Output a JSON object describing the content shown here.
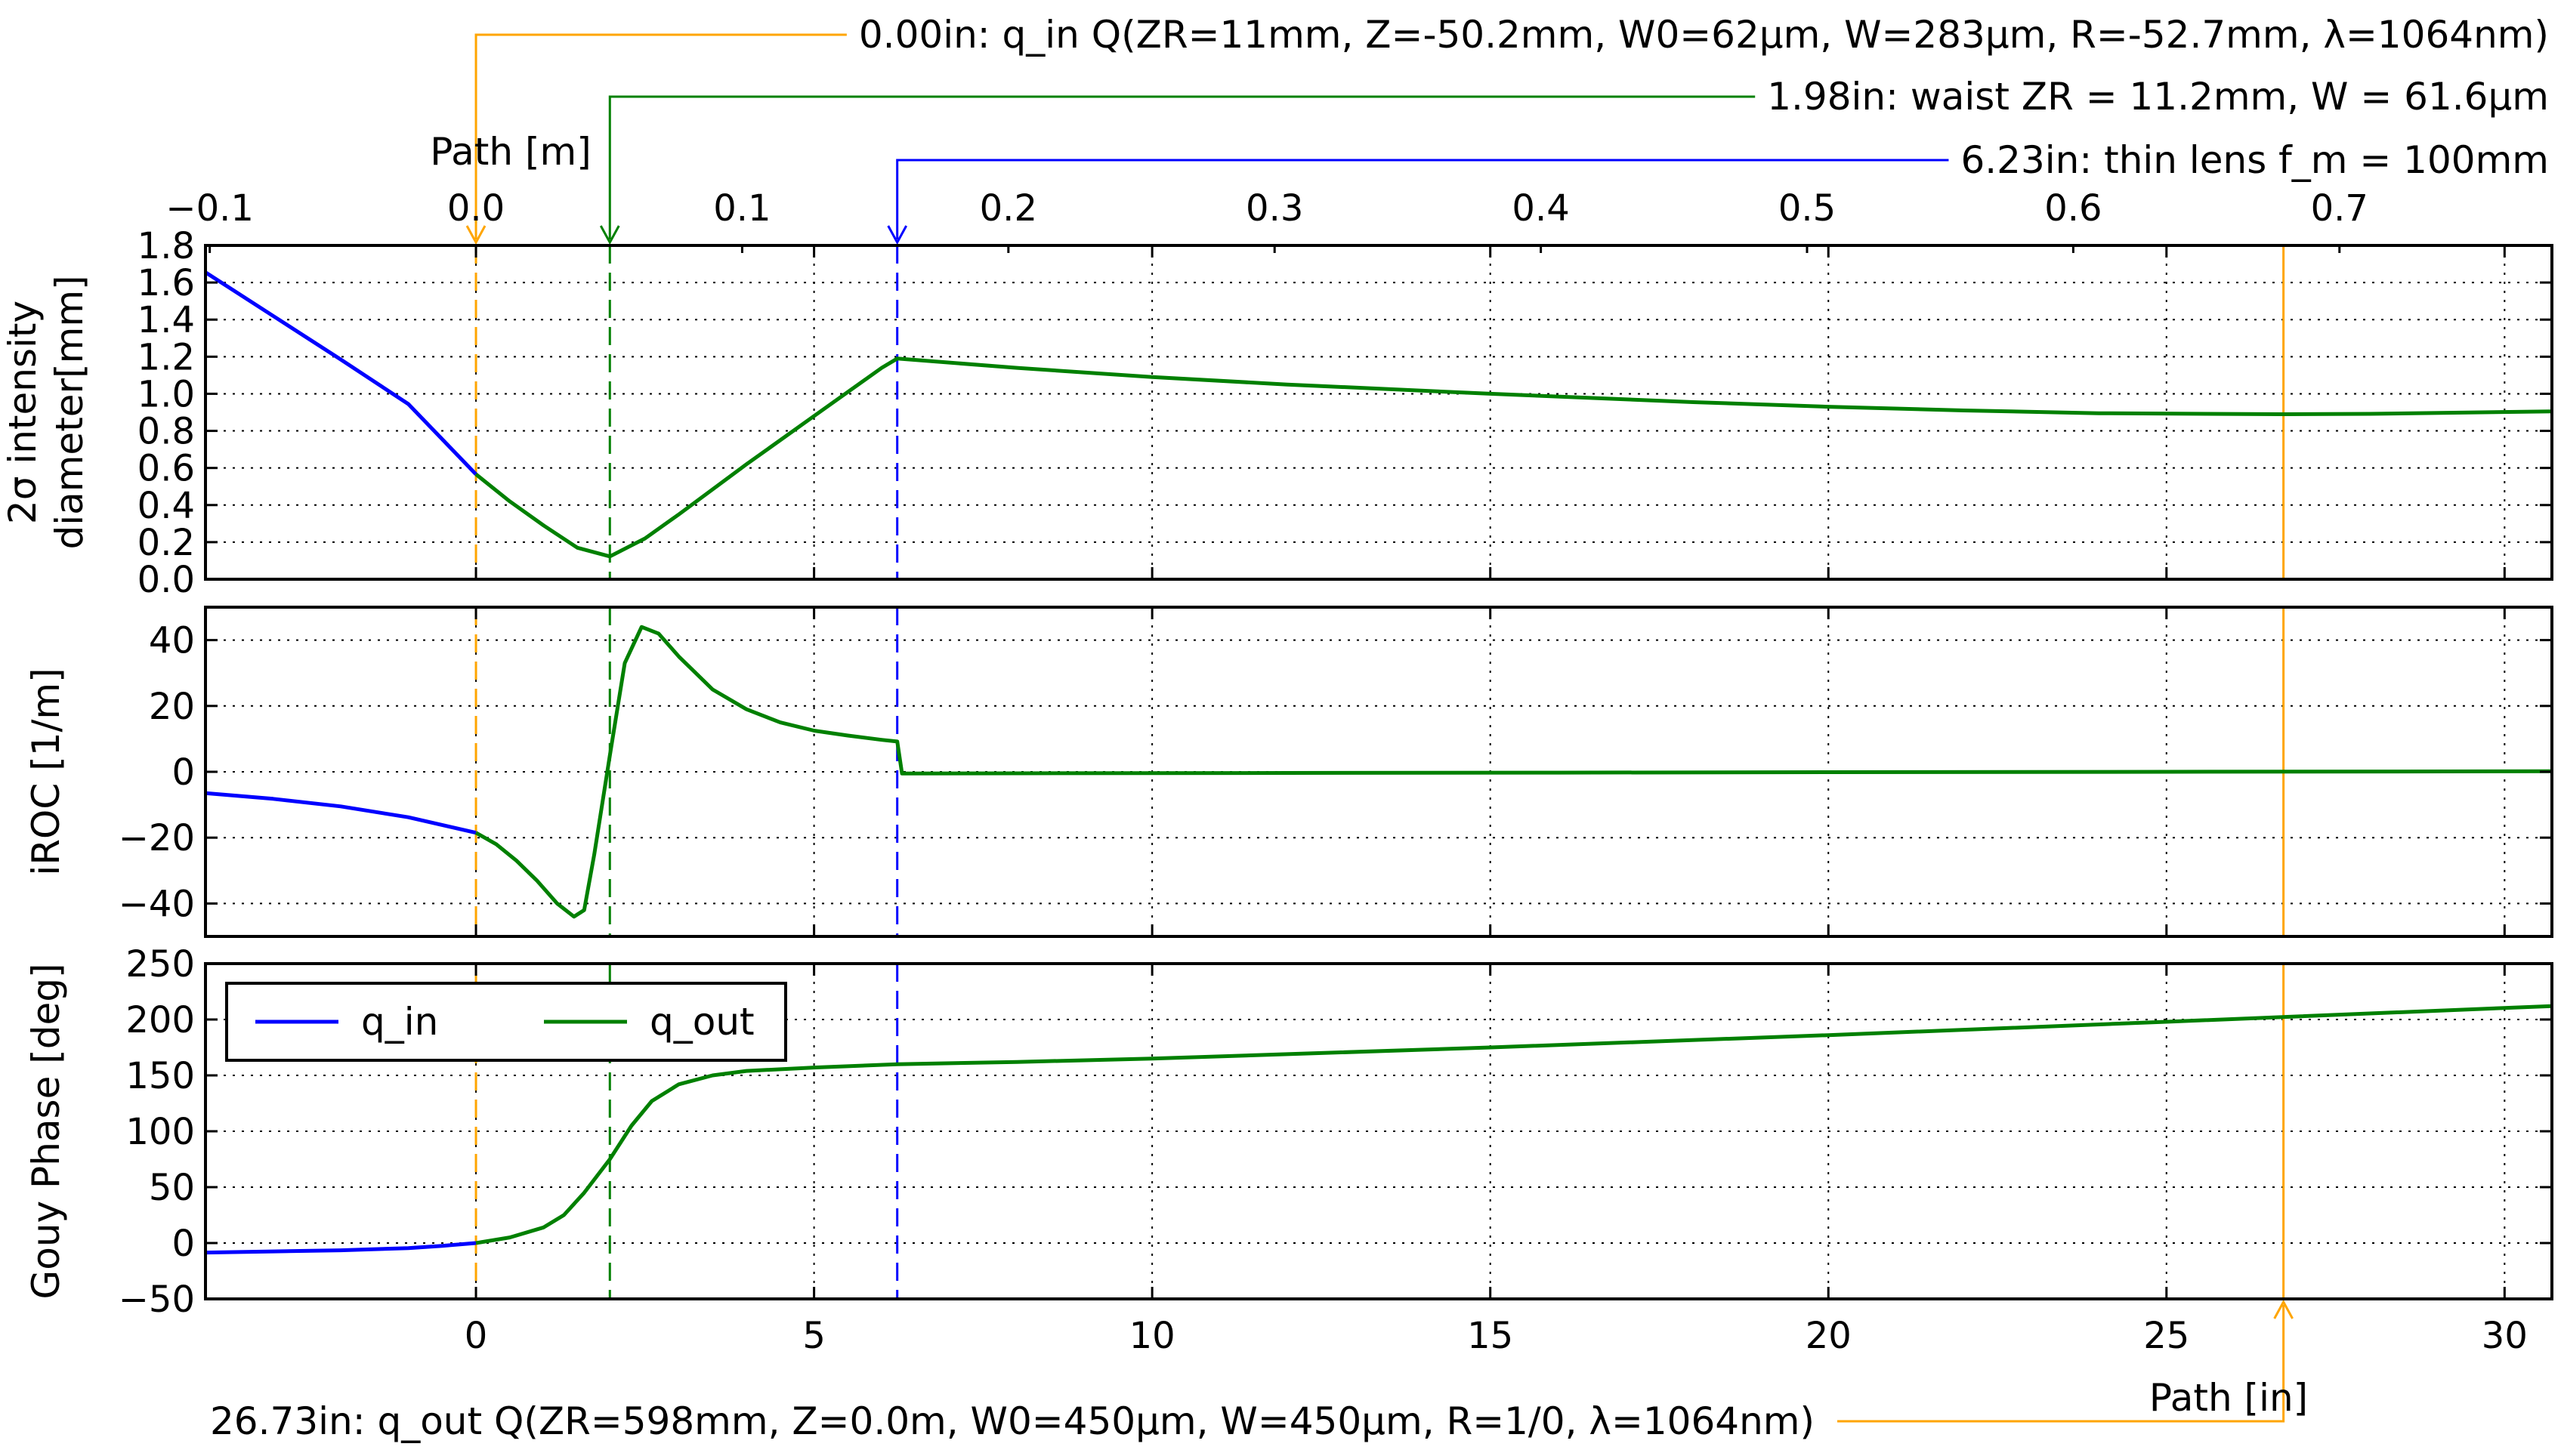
{
  "figure": {
    "top_axis_label": "Path [m]",
    "bottom_axis_label": "Path [in]"
  },
  "annotations": [
    {
      "id": "q-in",
      "x_in": 0.0,
      "color": "#ffa500",
      "side": "top",
      "text": "0.00in: q_in Q(ZR=11mm, Z=-50.2mm, W0=62µm, W=283µm, R=-52.7mm, λ=1064nm)"
    },
    {
      "id": "waist",
      "x_in": 1.98,
      "color": "#008000",
      "side": "top",
      "text": "1.98in: waist ZR = 11.2mm, W = 61.6µm"
    },
    {
      "id": "lens",
      "x_in": 6.23,
      "color": "#0000ff",
      "side": "top",
      "text": "6.23in: thin lens f_m = 100mm"
    },
    {
      "id": "q-out",
      "x_in": 26.73,
      "color": "#ffa500",
      "side": "bottom",
      "text": "26.73in: q_out Q(ZR=598mm, Z=0.0m, W0=450µm, W=450µm, R=1/0, λ=1064nm)"
    }
  ],
  "chart_data": [
    {
      "type": "line",
      "ylabel_lines": [
        "2σ intensity",
        "diameter[mm]"
      ],
      "xlim_in": [
        -4,
        30.7
      ],
      "xlim_m": [
        -0.1016,
        0.7798
      ],
      "x_ticks_in": [
        0,
        5,
        10,
        15,
        20,
        25,
        30
      ],
      "x_ticks_m": [
        -0.1,
        0.0,
        0.1,
        0.2,
        0.3,
        0.4,
        0.5,
        0.6,
        0.7
      ],
      "x_tick_labels_m": [
        "−0.1",
        "0.0",
        "0.1",
        "0.2",
        "0.3",
        "0.4",
        "0.5",
        "0.6",
        "0.7"
      ],
      "ylim": [
        0,
        1.8
      ],
      "y_ticks": [
        0,
        0.2,
        0.4,
        0.6,
        0.8,
        1.0,
        1.2,
        1.4,
        1.6,
        1.8
      ],
      "y_tick_labels": [
        "0.0",
        "0.2",
        "0.4",
        "0.6",
        "0.8",
        "1.0",
        "1.2",
        "1.4",
        "1.6",
        "1.8"
      ],
      "grid": true,
      "series": [
        {
          "name": "q_in",
          "color": "#0000ff",
          "x": [
            -4,
            -3,
            -2,
            -1,
            0
          ],
          "y": [
            1.655,
            1.42,
            1.185,
            0.945,
            0.566
          ]
        },
        {
          "name": "q_out",
          "color": "#008000",
          "x": [
            0,
            0.5,
            1.0,
            1.5,
            1.98,
            2.5,
            3.0,
            4.0,
            5.0,
            6.0,
            6.23,
            8,
            10,
            12,
            15,
            18,
            20,
            22,
            24,
            26.73,
            28,
            30.7
          ],
          "y": [
            0.566,
            0.42,
            0.29,
            0.17,
            0.123,
            0.22,
            0.35,
            0.62,
            0.88,
            1.14,
            1.19,
            1.14,
            1.09,
            1.05,
            1.0,
            0.955,
            0.93,
            0.91,
            0.895,
            0.89,
            0.892,
            0.905
          ]
        }
      ]
    },
    {
      "type": "line",
      "ylabel_lines": [
        "iROC [1/m]"
      ],
      "xlim_in": [
        -4,
        30.7
      ],
      "ylim": [
        -50,
        50
      ],
      "y_ticks": [
        -40,
        -20,
        0,
        20,
        40
      ],
      "y_tick_labels": [
        "−40",
        "−20",
        "0",
        "20",
        "40"
      ],
      "grid": true,
      "series": [
        {
          "name": "q_in",
          "color": "#0000ff",
          "x": [
            -4,
            -3,
            -2,
            -1,
            0
          ],
          "y": [
            -6.5,
            -8.2,
            -10.5,
            -13.8,
            -18.5
          ]
        },
        {
          "name": "q_out",
          "color": "#008000",
          "x": [
            0,
            0.3,
            0.6,
            0.9,
            1.2,
            1.45,
            1.6,
            1.75,
            1.98,
            2.2,
            2.45,
            2.7,
            3.0,
            3.5,
            4.0,
            4.5,
            5.0,
            5.5,
            6.0,
            6.23,
            6.3,
            8,
            12,
            16,
            20,
            25,
            30.7
          ],
          "y": [
            -18.5,
            -22,
            -27,
            -33,
            -40,
            -44,
            -42,
            -25,
            5,
            33,
            44,
            42,
            35,
            25,
            19,
            15,
            12.5,
            11,
            9.7,
            9.2,
            -0.5,
            -0.45,
            -0.35,
            -0.25,
            -0.12,
            0.0,
            0.15
          ]
        }
      ]
    },
    {
      "type": "line",
      "ylabel_lines": [
        "Gouy Phase [deg]"
      ],
      "xlim_in": [
        -4,
        30.7
      ],
      "ylim": [
        -50,
        250
      ],
      "y_ticks": [
        -50,
        0,
        50,
        100,
        150,
        200,
        250
      ],
      "y_tick_labels": [
        "−50",
        "0",
        "50",
        "100",
        "150",
        "200",
        "250"
      ],
      "x_ticks_in": [
        0,
        5,
        10,
        15,
        20,
        25,
        30
      ],
      "x_tick_labels_in": [
        "0",
        "5",
        "10",
        "15",
        "20",
        "25",
        "30"
      ],
      "grid": true,
      "legend": {
        "placement": "upper-left",
        "entries": [
          "q_in",
          "q_out"
        ]
      },
      "series": [
        {
          "name": "q_in",
          "color": "#0000ff",
          "x": [
            -4,
            -3,
            -2,
            -1,
            -0.5,
            0
          ],
          "y": [
            -8.5,
            -7.5,
            -6.5,
            -4.5,
            -2.5,
            0
          ]
        },
        {
          "name": "q_out",
          "color": "#008000",
          "x": [
            0,
            0.5,
            1.0,
            1.3,
            1.6,
            1.98,
            2.3,
            2.6,
            3.0,
            3.5,
            4.0,
            5.0,
            6.23,
            8,
            10,
            15,
            20,
            25,
            30.7
          ],
          "y": [
            0,
            5,
            14,
            25,
            45,
            75,
            105,
            127,
            142,
            150,
            154,
            157,
            160,
            162,
            165,
            175,
            186,
            198,
            212
          ]
        }
      ]
    }
  ]
}
